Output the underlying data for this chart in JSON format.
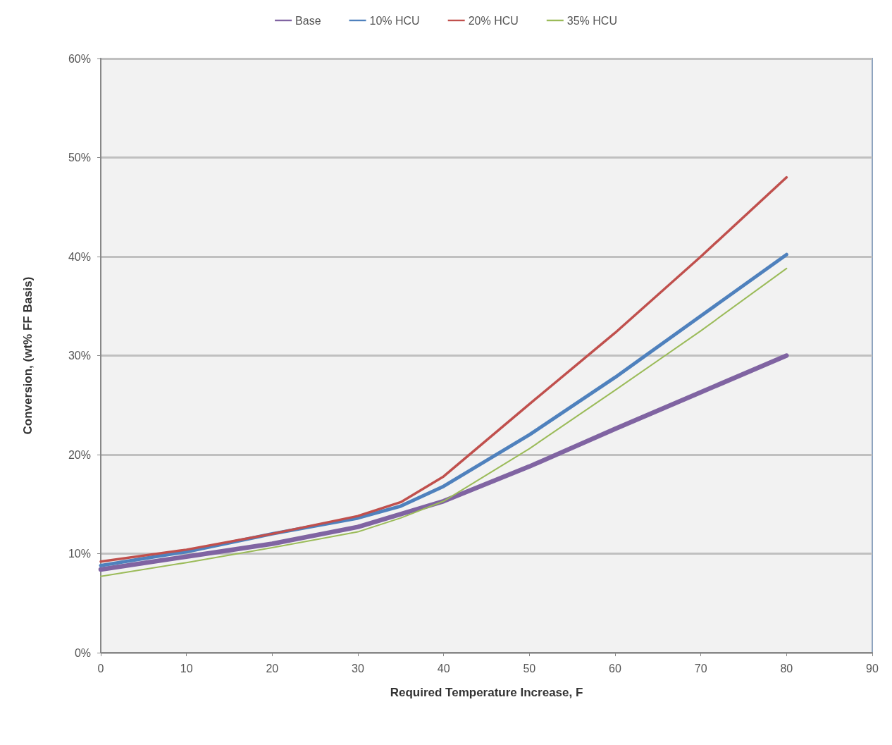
{
  "chart_data": {
    "type": "line",
    "xlabel": "Required Temperature Increase, F",
    "ylabel": "Conversion, (wt% FF Basis)",
    "x": [
      0,
      10,
      20,
      30,
      35,
      40,
      50,
      60,
      70,
      80
    ],
    "series": [
      {
        "name": "Base",
        "color": "#8064a2",
        "values": [
          8.4,
          9.7,
          11.0,
          12.7,
          14.0,
          15.3,
          18.8,
          22.6,
          26.3,
          30.0
        ]
      },
      {
        "name": "10% HCU",
        "color": "#4f81bd",
        "values": [
          8.8,
          10.2,
          12.0,
          13.6,
          14.8,
          16.8,
          22.0,
          27.8,
          34.0,
          40.2
        ]
      },
      {
        "name": "20% HCU",
        "color": "#c0504d",
        "values": [
          9.2,
          10.4,
          12.0,
          13.8,
          15.2,
          17.8,
          25.1,
          32.3,
          40.0,
          48.0
        ]
      },
      {
        "name": "35% HCU",
        "color": "#9bbb59",
        "values": [
          7.7,
          9.1,
          10.6,
          12.2,
          13.6,
          15.3,
          20.6,
          26.5,
          32.5,
          38.8
        ]
      }
    ],
    "xlim": [
      0,
      90
    ],
    "xticks": [
      0,
      10,
      20,
      30,
      40,
      50,
      60,
      70,
      80,
      90
    ],
    "ylim": [
      0,
      60
    ],
    "yticks": [
      {
        "value": 0,
        "label": "0%"
      },
      {
        "value": 10,
        "label": "10%"
      },
      {
        "value": 20,
        "label": "20%"
      },
      {
        "value": 30,
        "label": "30%"
      },
      {
        "value": 40,
        "label": "40%"
      },
      {
        "value": 50,
        "label": "50%"
      },
      {
        "value": 60,
        "label": "60%"
      }
    ],
    "grid": "y",
    "legend": "top",
    "marker": "none",
    "line_style": "solid"
  }
}
